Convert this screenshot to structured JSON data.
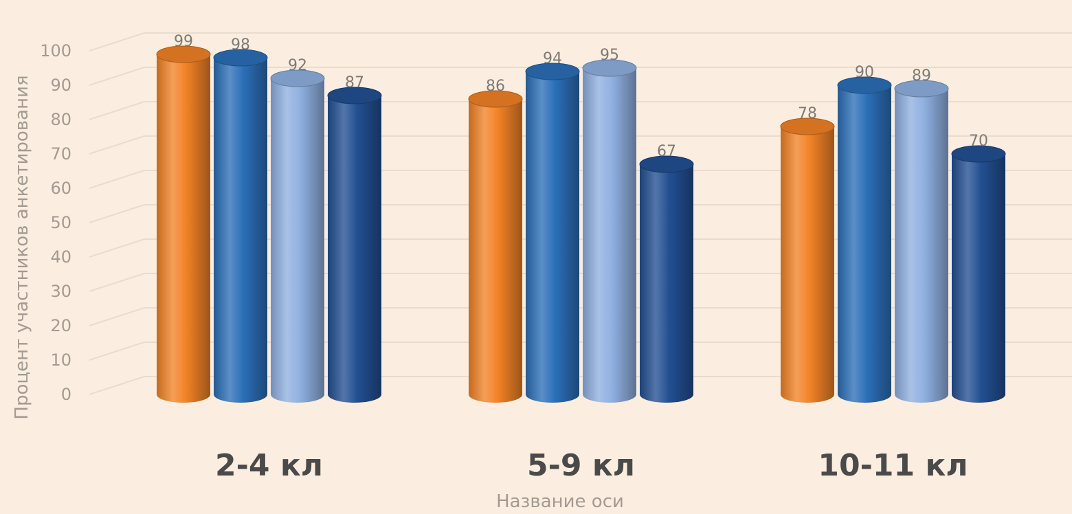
{
  "chart_data": {
    "type": "bar",
    "categories": [
      "2-4 кл",
      "5-9 кл",
      "10-11 кл"
    ],
    "series": [
      {
        "color": "#f28226",
        "values": [
          99,
          86,
          78
        ]
      },
      {
        "color": "#2b6fb8",
        "values": [
          98,
          94,
          90
        ]
      },
      {
        "color": "#8fb0e0",
        "values": [
          92,
          95,
          89
        ]
      },
      {
        "color": "#224f92",
        "values": [
          87,
          67,
          70
        ]
      }
    ],
    "xlabel": "Название оси",
    "ylabel": "Процент участников анкетирования",
    "ylim": [
      0,
      100
    ],
    "yticks": [
      0,
      10,
      20,
      30,
      40,
      50,
      60,
      70,
      80,
      90,
      100
    ],
    "grid": true,
    "legend": "none",
    "style": "3d-cylinder"
  }
}
